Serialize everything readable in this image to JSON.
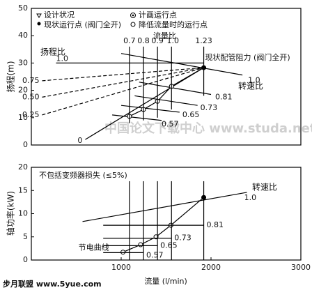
{
  "chart_data": [
    {
      "type": "line",
      "ylabel": "扬程(m)",
      "xlim": [
        0,
        3000
      ],
      "ylim": [
        0,
        50
      ],
      "yticks": [
        0,
        10,
        20,
        30,
        40,
        50
      ],
      "legend": [
        "设计状况",
        "计画运行点",
        "现状运行点 (阀门全开)",
        "降低流量时的运行点"
      ],
      "annotations": [
        "流量比",
        "扬程比",
        "转速比"
      ],
      "series": [
        {
          "name": "1.0",
          "x": [
            275,
            1919
          ],
          "values": [
            30,
            30
          ]
        },
        {
          "name": "1.0",
          "x": [
            1000,
            2350
          ],
          "values": [
            33.5,
            25.6
          ]
        },
        {
          "name": "0.81",
          "x": [
            1200,
            2000
          ],
          "values": [
            23,
            18.5
          ]
        },
        {
          "name": "0.73",
          "x": [
            1150,
            1850
          ],
          "values": [
            18,
            14.5
          ]
        },
        {
          "name": "0.65",
          "x": [
            1000,
            1650
          ],
          "values": [
            14.5,
            12
          ]
        },
        {
          "name": "0.57",
          "x": [
            900,
            1450
          ],
          "values": [
            11,
            9
          ]
        },
        {
          "name": "0.75",
          "x": [
            120,
            1919
          ],
          "values": [
            23.5,
            28.3
          ],
          "dashed": true
        },
        {
          "name": "0.50",
          "x": [
            120,
            1919
          ],
          "values": [
            17.5,
            28.3
          ],
          "dashed": true
        },
        {
          "name": "0.25",
          "x": [
            120,
            1919
          ],
          "values": [
            11,
            28.3
          ],
          "dashed": true
        },
        {
          "name": "0",
          "x": [
            600,
            1919
          ],
          "values": [
            2,
            28.3
          ]
        },
        {
          "name": "现状配管阻力 (阀门全开)",
          "x": [
            1092,
            1248,
            1404,
            1560,
            1919
          ],
          "values": [
            10.5,
            13,
            16,
            21.5,
            28.3
          ],
          "markers": true
        },
        {
          "name": "0.7",
          "x": [
            1092,
            1092
          ],
          "values": [
            36,
            8
          ]
        },
        {
          "name": "0.8",
          "x": [
            1248,
            1248
          ],
          "values": [
            36,
            9
          ]
        },
        {
          "name": "0.9",
          "x": [
            1404,
            1404
          ],
          "values": [
            36,
            10
          ]
        },
        {
          "name": "1.0",
          "x": [
            1560,
            1560
          ],
          "values": [
            36,
            13
          ]
        },
        {
          "name": "1.23",
          "x": [
            1919,
            1919
          ],
          "values": [
            36,
            18
          ]
        }
      ],
      "watermark": "中国论文下载中心 www.studa.net"
    },
    {
      "type": "line",
      "ylabel": "轴功率(kW)",
      "xlabel": "流量 (l/min)",
      "xlim": [
        0,
        3000
      ],
      "xticks": [
        1000,
        2000,
        3000
      ],
      "ylim": [
        0,
        20
      ],
      "yticks": [
        0,
        5,
        10,
        15,
        20
      ],
      "annotations": [
        "不包括变频器损失 (≤5%)",
        "转速比"
      ],
      "series": [
        {
          "name": "1.0",
          "x": [
            570,
            2400
          ],
          "values": [
            8.3,
            14.6
          ]
        },
        {
          "name": "节电曲线",
          "x": [
            1020,
            1216,
            1388,
            1553,
            1919
          ],
          "values": [
            1.7,
            3.3,
            5,
            7.5,
            13.5
          ],
          "markers": true
        },
        {
          "name": "0.81",
          "x": [
            800,
            1919
          ],
          "values": [
            7.5,
            7.5
          ]
        },
        {
          "name": "0.73",
          "x": [
            800,
            1560
          ],
          "values": [
            4.7,
            4.7
          ]
        },
        {
          "name": "0.65",
          "x": [
            800,
            1404
          ],
          "values": [
            3.1,
            3.1
          ]
        },
        {
          "name": "0.57",
          "x": [
            800,
            1248
          ],
          "values": [
            1.6,
            1.6
          ]
        },
        {
          "x": [
            1092,
            1092
          ],
          "values": [
            0,
            17
          ]
        },
        {
          "x": [
            1248,
            1248
          ],
          "values": [
            0,
            17
          ]
        },
        {
          "x": [
            1404,
            1404
          ],
          "values": [
            0,
            17
          ]
        },
        {
          "x": [
            1560,
            1560
          ],
          "values": [
            0,
            17
          ]
        },
        {
          "x": [
            1919,
            1919
          ],
          "values": [
            0,
            17
          ]
        }
      ],
      "footer": "步月联盟 www.5yue.com"
    }
  ]
}
